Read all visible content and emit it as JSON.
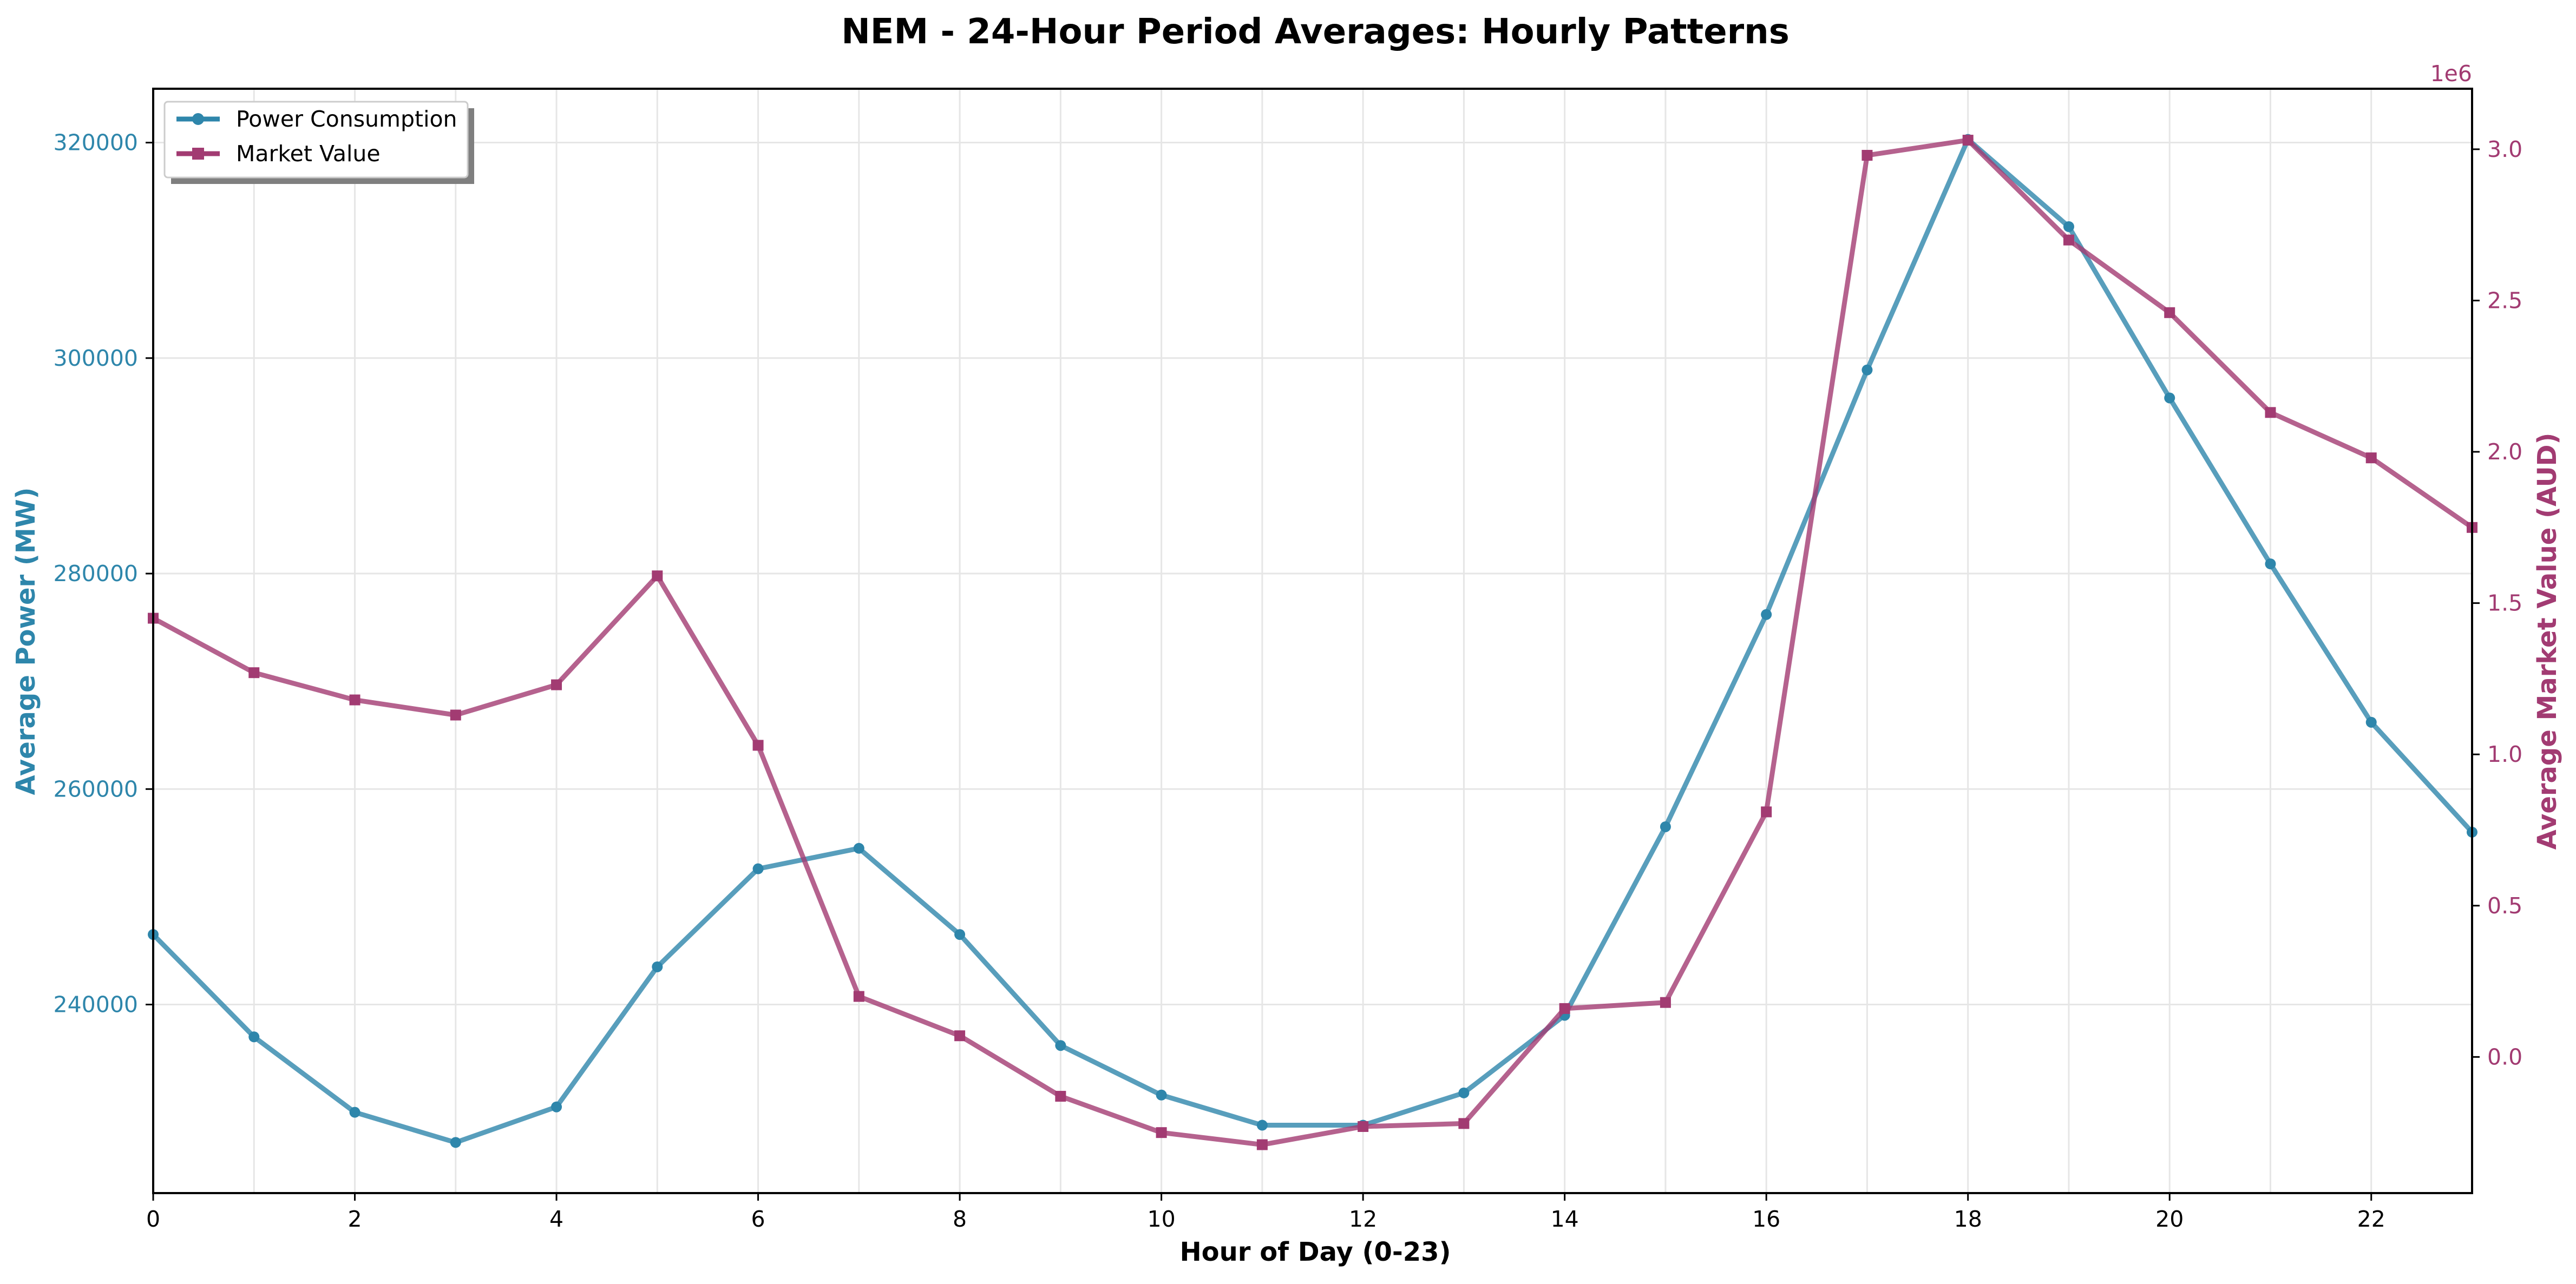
{
  "colors": {
    "power": "#2E86AB",
    "market": "#A23B72",
    "grid": "#e6e6e6",
    "axis": "#000000"
  },
  "chart_data": {
    "type": "line",
    "title": "NEM - 24-Hour Period Averages: Hourly Patterns",
    "xlabel": "Hour of Day (0-23)",
    "ylabel_left": "Average Power (MW)",
    "ylabel_right": "Average Market Value (AUD)",
    "right_axis_offset_text": "1e6",
    "xlim": [
      0,
      23
    ],
    "ylim_left": [
      222500,
      325000
    ],
    "ylim_right": [
      -0.45,
      3.2
    ],
    "x_ticks": [
      0,
      2,
      4,
      6,
      8,
      10,
      12,
      14,
      16,
      18,
      20,
      22
    ],
    "x_tick_labels": [
      "0",
      "2",
      "4",
      "6",
      "8",
      "10",
      "12",
      "14",
      "16",
      "18",
      "20",
      "22"
    ],
    "y_left_ticks": [
      240000,
      260000,
      280000,
      300000,
      320000
    ],
    "y_left_tick_labels": [
      "240000",
      "260000",
      "280000",
      "300000",
      "320000"
    ],
    "y_right_ticks": [
      0.0,
      0.5,
      1.0,
      1.5,
      2.0,
      2.5,
      3.0
    ],
    "y_right_tick_labels": [
      "0.0",
      "0.5",
      "1.0",
      "1.5",
      "2.0",
      "2.5",
      "3.0"
    ],
    "grid": true,
    "legend_position": "top-left",
    "x": [
      0,
      1,
      2,
      3,
      4,
      5,
      6,
      7,
      8,
      9,
      10,
      11,
      12,
      13,
      14,
      15,
      16,
      17,
      18,
      19,
      20,
      21,
      22,
      23
    ],
    "series": [
      {
        "name": "Power Consumption",
        "axis": "left",
        "marker": "circle",
        "values": [
          246500,
          237000,
          230000,
          227200,
          230500,
          243500,
          252600,
          254500,
          246500,
          236200,
          231600,
          228800,
          228800,
          231800,
          239000,
          256500,
          276200,
          298900,
          320300,
          312200,
          296300,
          280900,
          266200,
          256000
        ]
      },
      {
        "name": "Market Value",
        "axis": "right",
        "marker": "square",
        "values": [
          1.45,
          1.27,
          1.18,
          1.13,
          1.23,
          1.59,
          1.03,
          0.2,
          0.07,
          -0.13,
          -0.25,
          -0.29,
          -0.23,
          -0.22,
          0.16,
          0.18,
          0.81,
          2.98,
          3.03,
          2.7,
          2.46,
          2.13,
          1.98,
          1.75
        ]
      }
    ]
  }
}
